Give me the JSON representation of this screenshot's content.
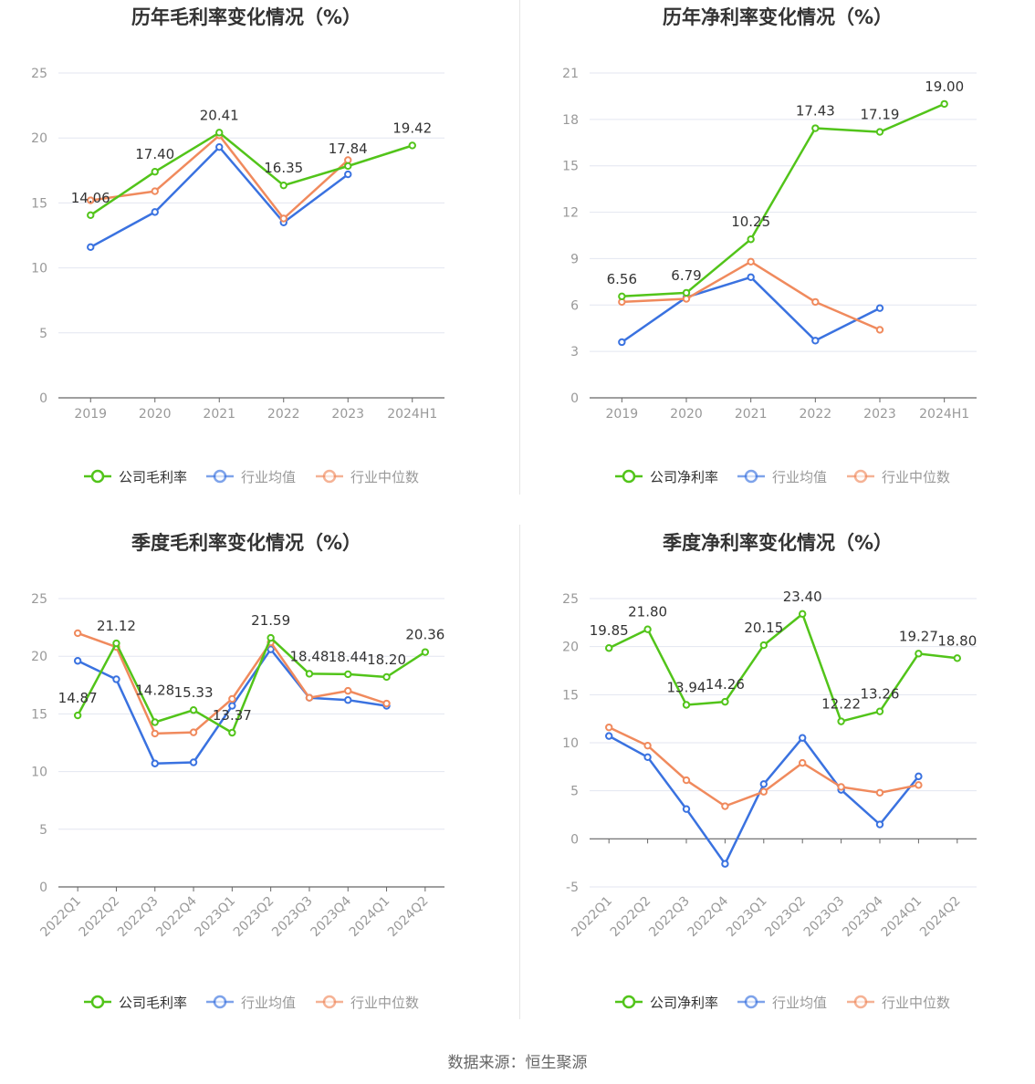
{
  "source_text": "数据来源：恒生聚源",
  "colors": {
    "company": "#52c41a",
    "avg": "#3a72e0",
    "median": "#f08a5d",
    "axis": "#666666",
    "grid": "#e3e6f0",
    "tick_label": "#999999",
    "title": "#333333",
    "label": "#333333"
  },
  "chart_data": [
    {
      "type": "line",
      "title": "历年毛利率变化情况（%）",
      "categories": [
        "2019",
        "2020",
        "2021",
        "2022",
        "2023",
        "2024H1"
      ],
      "ylim": [
        0,
        25
      ],
      "yticks": [
        0,
        5,
        10,
        15,
        20,
        25
      ],
      "grid": true,
      "legend_position": "bottom",
      "series": [
        {
          "name": "公司毛利率",
          "role": "company",
          "values": [
            14.06,
            17.4,
            20.41,
            16.35,
            17.84,
            19.42
          ]
        },
        {
          "name": "行业均值",
          "role": "avg",
          "values": [
            11.6,
            14.3,
            19.3,
            13.5,
            17.2,
            null
          ]
        },
        {
          "name": "行业中位数",
          "role": "median",
          "values": [
            15.2,
            15.9,
            20.2,
            13.8,
            18.3,
            null
          ]
        }
      ],
      "data_labels": [
        "14.06",
        "17.40",
        "20.41",
        "16.35",
        "17.84",
        "19.42"
      ]
    },
    {
      "type": "line",
      "title": "历年净利率变化情况（%）",
      "categories": [
        "2019",
        "2020",
        "2021",
        "2022",
        "2023",
        "2024H1"
      ],
      "ylim": [
        0,
        21
      ],
      "yticks": [
        0,
        3,
        6,
        9,
        12,
        15,
        18,
        21
      ],
      "grid": true,
      "legend_position": "bottom",
      "series": [
        {
          "name": "公司净利率",
          "role": "company",
          "values": [
            6.56,
            6.79,
            10.25,
            17.43,
            17.19,
            19.0
          ]
        },
        {
          "name": "行业均值",
          "role": "avg",
          "values": [
            3.6,
            6.5,
            7.8,
            3.7,
            5.8,
            null
          ]
        },
        {
          "name": "行业中位数",
          "role": "median",
          "values": [
            6.2,
            6.4,
            8.8,
            6.2,
            4.4,
            null
          ]
        }
      ],
      "data_labels": [
        "6.56",
        "6.79",
        "10.25",
        "17.43",
        "17.19",
        "19.00"
      ]
    },
    {
      "type": "line",
      "title": "季度毛利率变化情况（%）",
      "categories": [
        "2022Q1",
        "2022Q2",
        "2022Q3",
        "2022Q4",
        "2023Q1",
        "2023Q2",
        "2023Q3",
        "2023Q4",
        "2024Q1",
        "2024Q2"
      ],
      "ylim": [
        0,
        25
      ],
      "yticks": [
        0,
        5,
        10,
        15,
        20,
        25
      ],
      "grid": true,
      "legend_position": "bottom",
      "rotated_x_labels": true,
      "series": [
        {
          "name": "公司毛利率",
          "role": "company",
          "values": [
            14.87,
            21.12,
            14.28,
            15.33,
            13.37,
            21.59,
            18.48,
            18.44,
            18.2,
            20.36
          ]
        },
        {
          "name": "行业均值",
          "role": "avg",
          "values": [
            19.6,
            18.0,
            10.7,
            10.8,
            15.7,
            20.6,
            16.4,
            16.2,
            15.7,
            null
          ]
        },
        {
          "name": "行业中位数",
          "role": "median",
          "values": [
            22.0,
            20.8,
            13.3,
            13.4,
            16.3,
            21.2,
            16.4,
            17.0,
            15.9,
            null
          ]
        }
      ],
      "data_labels": [
        "14.87",
        "21.12",
        "14.28",
        "15.33",
        "13.37",
        "21.59",
        "18.48",
        "18.44",
        "18.20",
        "20.36"
      ]
    },
    {
      "type": "line",
      "title": "季度净利率变化情况（%）",
      "categories": [
        "2022Q1",
        "2022Q2",
        "2022Q3",
        "2022Q4",
        "2023Q1",
        "2023Q2",
        "2023Q3",
        "2023Q4",
        "2024Q1",
        "2024Q2"
      ],
      "ylim": [
        -5,
        25
      ],
      "yticks": [
        -5,
        0,
        5,
        10,
        15,
        20,
        25
      ],
      "grid": true,
      "legend_position": "bottom",
      "rotated_x_labels": true,
      "series": [
        {
          "name": "公司净利率",
          "role": "company",
          "values": [
            19.85,
            21.8,
            13.94,
            14.26,
            20.15,
            23.4,
            12.22,
            13.26,
            19.27,
            18.8
          ]
        },
        {
          "name": "行业均值",
          "role": "avg",
          "values": [
            10.7,
            8.5,
            3.1,
            -2.6,
            5.7,
            10.5,
            5.1,
            1.5,
            6.5,
            null
          ]
        },
        {
          "name": "行业中位数",
          "role": "median",
          "values": [
            11.6,
            9.7,
            6.1,
            3.4,
            4.9,
            7.9,
            5.4,
            4.8,
            5.6,
            null
          ]
        }
      ],
      "data_labels": [
        "19.85",
        "21.80",
        "13.94",
        "14.26",
        "20.15",
        "23.40",
        "12.22",
        "13.26",
        "19.27",
        "18.80"
      ]
    }
  ]
}
